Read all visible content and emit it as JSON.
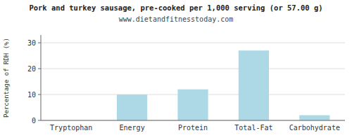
{
  "chart_data": {
    "type": "bar",
    "title": "Pork and turkey sausage, pre-cooked per 1,000 serving (or 57.00 g)",
    "subtitle": "www.dietandfitnesstoday.com",
    "ylabel": "Percentage of RDH (%)",
    "categories": [
      "Tryptophan",
      "Energy",
      "Protein",
      "Total-Fat",
      "Carbohydrate"
    ],
    "values": [
      0,
      10,
      12,
      27,
      2
    ],
    "color": "#add8e6",
    "ylim": [
      0,
      33
    ],
    "yticks": [
      0,
      10,
      20,
      30
    ],
    "grid": true
  }
}
